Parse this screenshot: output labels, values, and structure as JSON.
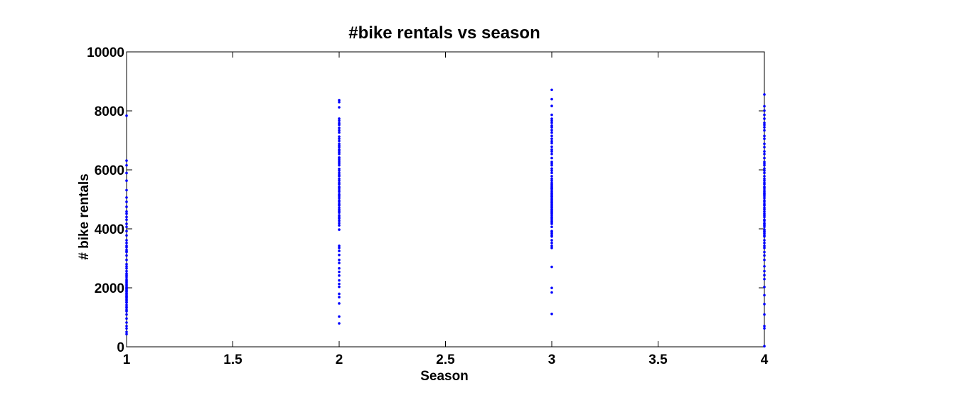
{
  "chart_data": {
    "type": "scatter",
    "title": "#bike rentals vs season",
    "xlabel": "Season",
    "ylabel": "# bike rentals",
    "xlim": [
      1,
      4
    ],
    "ylim": [
      0,
      10000
    ],
    "xticks": [
      "1",
      "1.5",
      "2",
      "2.5",
      "3",
      "3.5",
      "4"
    ],
    "xtick_values": [
      1,
      1.5,
      2,
      2.5,
      3,
      3.5,
      4
    ],
    "yticks": [
      "0",
      "2000",
      "4000",
      "6000",
      "8000",
      "10000"
    ],
    "ytick_values": [
      0,
      2000,
      4000,
      6000,
      8000,
      10000
    ],
    "grid": false,
    "marker_color": "#0000ff",
    "series": [
      {
        "x": 1,
        "values": [
          431,
          506,
          623,
          705,
          822,
          959,
          1096,
          1204,
          1248,
          1321,
          1349,
          1416,
          1501,
          1510,
          1562,
          1600,
          1650,
          1685,
          1708,
          1746,
          1787,
          1815,
          1862,
          1891,
          1913,
          1951,
          1977,
          2000,
          2028,
          2077,
          2115,
          2169,
          2209,
          2252,
          2294,
          2368,
          2429,
          2485,
          2566,
          2660,
          2729,
          2802,
          2947,
          3095,
          3214,
          3239,
          3285,
          3376,
          3422,
          3520,
          3614,
          3777,
          3922,
          4066,
          4169,
          4308,
          4401,
          4511,
          4585,
          4748,
          4916,
          5062,
          5312,
          5633,
          5892,
          6153,
          6312,
          7836
        ]
      },
      {
        "x": 2,
        "values": [
          795,
          1027,
          1471,
          1685,
          1796,
          2034,
          2132,
          2252,
          2417,
          2541,
          2660,
          2843,
          2947,
          3115,
          3249,
          3351,
          3422,
          3974,
          4118,
          4195,
          4274,
          4352,
          4401,
          4459,
          4548,
          4595,
          4648,
          4714,
          4792,
          4840,
          4916,
          4966,
          5046,
          5115,
          5170,
          5255,
          5315,
          5382,
          5423,
          5511,
          5558,
          5633,
          5698,
          5786,
          5823,
          5895,
          5976,
          6034,
          6153,
          6207,
          6269,
          6338,
          6398,
          6421,
          6536,
          6598,
          6664,
          6690,
          6770,
          6824,
          6883,
          6978,
          7055,
          7129,
          7264,
          7338,
          7421,
          7525,
          7582,
          7665,
          7736,
          8120,
          8294,
          8362
        ]
      },
      {
        "x": 3,
        "values": [
          1115,
          1842,
          1996,
          2710,
          3351,
          3422,
          3520,
          3614,
          3740,
          3777,
          3840,
          3894,
          3922,
          4066,
          4169,
          4220,
          4258,
          4308,
          4362,
          4401,
          4459,
          4511,
          4548,
          4585,
          4630,
          4660,
          4714,
          4748,
          4792,
          4840,
          4885,
          4916,
          4966,
          5002,
          5046,
          5099,
          5115,
          5170,
          5202,
          5255,
          5315,
          5362,
          5382,
          5423,
          5463,
          5511,
          5558,
          5633,
          5698,
          5786,
          5895,
          5976,
          6043,
          6153,
          6207,
          6269,
          6398,
          6536,
          6624,
          6691,
          6786,
          6904,
          6973,
          7055,
          7148,
          7261,
          7349,
          7442,
          7498,
          7592,
          7665,
          7733,
          7865,
          8167,
          8395,
          8714
        ]
      },
      {
        "x": 4,
        "values": [
          22,
          627,
          705,
          1096,
          1450,
          1749,
          2028,
          2294,
          2429,
          2566,
          2729,
          2947,
          3095,
          3214,
          3351,
          3422,
          3520,
          3614,
          3740,
          3777,
          3840,
          3894,
          3922,
          3974,
          4066,
          4118,
          4169,
          4195,
          4274,
          4308,
          4401,
          4459,
          4511,
          4585,
          4660,
          4714,
          4792,
          4840,
          4916,
          4966,
          5046,
          5115,
          5170,
          5202,
          5255,
          5315,
          5382,
          5423,
          5511,
          5558,
          5633,
          5698,
          5786,
          5895,
          5976,
          6043,
          6153,
          6207,
          6269,
          6398,
          6536,
          6624,
          6770,
          6883,
          7055,
          7148,
          7338,
          7442,
          7525,
          7592,
          7736,
          7865,
          8009,
          8156,
          8555
        ]
      }
    ]
  }
}
